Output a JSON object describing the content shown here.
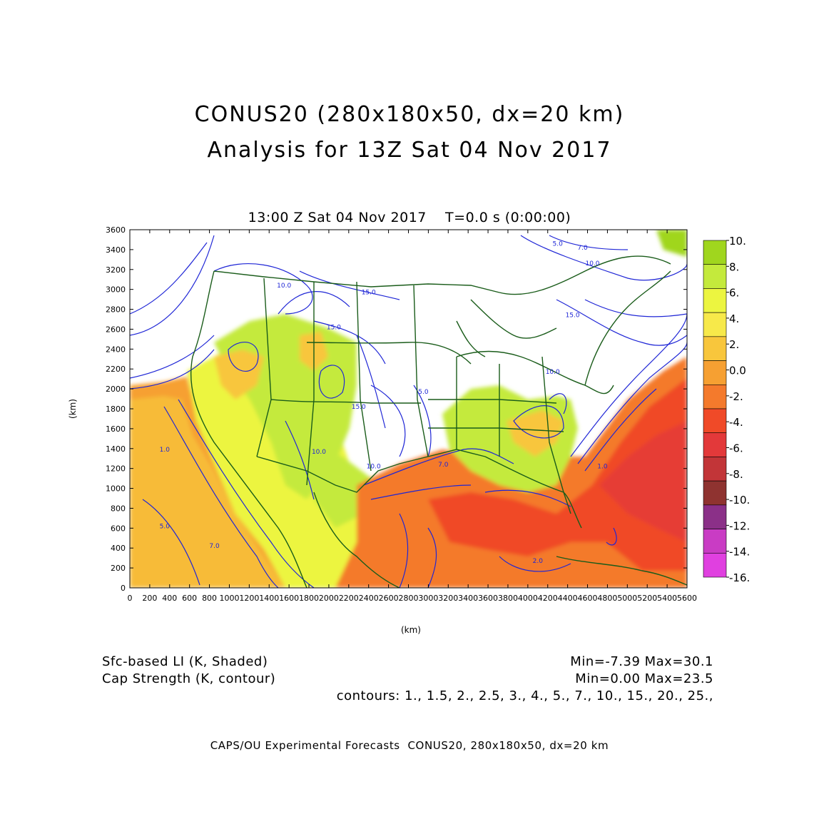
{
  "title": {
    "line1": "CONUS20 (280x180x50, dx=20 km)",
    "line2": "Analysis for 13Z Sat 04 Nov 2017",
    "subtitle": "13:00 Z Sat 04 Nov 2017    T=0.0 s (0:00:00)"
  },
  "axes": {
    "x_label": "(km)",
    "y_label": "(km)",
    "x_range": [
      0,
      5600
    ],
    "y_range": [
      0,
      3600
    ],
    "x_ticks": [
      0,
      200,
      400,
      600,
      800,
      1000,
      1200,
      1400,
      1600,
      1800,
      2000,
      2200,
      2400,
      2600,
      2800,
      3000,
      3200,
      3400,
      3600,
      3800,
      4000,
      4200,
      4400,
      4600,
      4800,
      5000,
      5200,
      5400,
      5600
    ],
    "x_tick_labels": [
      "0",
      "200",
      "400",
      "600",
      "800",
      "1000",
      "1200",
      "1400",
      "1600",
      "1800",
      "2000",
      "2200",
      "2400",
      "2600",
      "2800",
      "3000",
      "3200",
      "3400",
      "3600",
      "3800",
      "4000",
      "4200",
      "4400",
      "4600",
      "4800",
      "5000",
      "5200",
      "5400",
      "5600"
    ],
    "y_ticks": [
      0,
      200,
      400,
      600,
      800,
      1000,
      1200,
      1400,
      1600,
      1800,
      2000,
      2200,
      2400,
      2600,
      2800,
      3000,
      3200,
      3400,
      3600
    ],
    "y_tick_labels": [
      "0",
      "200",
      "400",
      "600",
      "800",
      "1000",
      "1200",
      "1400",
      "1600",
      "1800",
      "2000",
      "2200",
      "2400",
      "2600",
      "2800",
      "3000",
      "3200",
      "3400",
      "3600"
    ]
  },
  "colorbar": {
    "labels": [
      "10.",
      "8.",
      "6.",
      "4.",
      "2.",
      "0.0",
      "-2.",
      "-4.",
      "-6.",
      "-8.",
      "-10.",
      "-12.",
      "-14.",
      "-16."
    ],
    "colors": [
      "#a0d61e",
      "#c4ea3c",
      "#ecf540",
      "#f7e94a",
      "#f8c63c",
      "#f6a032",
      "#f47a2c",
      "#f04a28",
      "#e3393a",
      "#c23538",
      "#8f3330",
      "#8b3088",
      "#c93cc4",
      "#e040e0"
    ]
  },
  "contour_labels": [
    {
      "text": "5.0",
      "x": 4300,
      "y": 3440
    },
    {
      "text": "7.0",
      "x": 4550,
      "y": 3400
    },
    {
      "text": "10.0",
      "x": 4650,
      "y": 3240
    },
    {
      "text": "10.0",
      "x": 1550,
      "y": 3020
    },
    {
      "text": "15.0",
      "x": 2400,
      "y": 2950
    },
    {
      "text": "15.0",
      "x": 4450,
      "y": 2720
    },
    {
      "text": "15.0",
      "x": 2050,
      "y": 2600
    },
    {
      "text": "15.0",
      "x": 2300,
      "y": 1800
    },
    {
      "text": "5.0",
      "x": 2950,
      "y": 1950
    },
    {
      "text": "10.0",
      "x": 4250,
      "y": 2150
    },
    {
      "text": "10.0",
      "x": 1900,
      "y": 1350
    },
    {
      "text": "10.0",
      "x": 2450,
      "y": 1200
    },
    {
      "text": "1.0",
      "x": 350,
      "y": 1370
    },
    {
      "text": "7.0",
      "x": 850,
      "y": 400
    },
    {
      "text": "1.0",
      "x": 4750,
      "y": 1200
    },
    {
      "text": "5.0",
      "x": 350,
      "y": 600
    },
    {
      "text": "2.0",
      "x": 4100,
      "y": 250
    },
    {
      "text": "7.0",
      "x": 3150,
      "y": 1220
    }
  ],
  "legend": {
    "left_line1": "Sfc-based LI (K, Shaded)",
    "left_line2": "Cap Strength (K, contour)",
    "right_line1": "Min=-7.39 Max=30.1",
    "right_line2": "Min=0.00 Max=23.5",
    "contours": "contours: 1., 1.5, 2., 2.5, 3., 4., 5., 7., 10., 15., 20., 25.,"
  },
  "credit": "CAPS/OU Experimental Forecasts  CONUS20, 280x180x50, dx=20 km",
  "field_colors": {
    "white": "#ffffff",
    "green_dark": "#a0d61e",
    "green": "#c4ea3c",
    "yellow": "#ecf540",
    "gold": "#f8c63c",
    "orange": "#f6a032",
    "orange_red": "#f47a2c",
    "red": "#f04a28",
    "red_dark": "#e3393a",
    "contour": "#1f26d6",
    "border": "#1a5c1a"
  }
}
